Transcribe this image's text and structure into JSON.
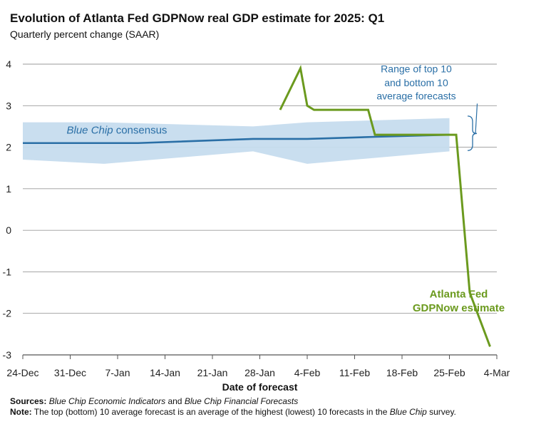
{
  "chart_data": {
    "type": "line",
    "title": "Evolution of Atlanta Fed GDPNow real GDP estimate for 2025: Q1",
    "subtitle": "Quarterly percent change (SAAR)",
    "xlabel": "Date of forecast",
    "ylabel": "",
    "ylim": [
      -3,
      4
    ],
    "yticks": [
      4,
      3,
      2,
      1,
      0,
      -1,
      -2,
      -3
    ],
    "xlim": [
      "2024-12-24",
      "2025-03-04"
    ],
    "xtick_labels": [
      "24-Dec",
      "31-Dec",
      "7-Jan",
      "14-Jan",
      "21-Jan",
      "28-Jan",
      "4-Feb",
      "11-Feb",
      "18-Feb",
      "25-Feb",
      "4-Mar"
    ],
    "grid": "horizontal",
    "colors": {
      "consensus": "#2a6fa6",
      "band": "#c6dcee",
      "gdpnow": "#6b9a1e",
      "annotation": "#2a6fa6"
    },
    "series": [
      {
        "name": "Blue Chip consensus",
        "x": [
          "2024-12-24",
          "2025-01-10",
          "2025-01-27",
          "2025-02-04",
          "2025-02-14",
          "2025-02-25"
        ],
        "y": [
          2.1,
          2.1,
          2.2,
          2.2,
          2.25,
          2.3
        ]
      },
      {
        "name": "Atlanta Fed GDPNow estimate",
        "x": [
          "2025-01-31",
          "2025-02-03",
          "2025-02-04",
          "2025-02-05",
          "2025-02-13",
          "2025-02-14",
          "2025-02-25",
          "2025-02-26",
          "2025-02-28",
          "2025-03-03"
        ],
        "y": [
          2.9,
          3.9,
          3.0,
          2.9,
          2.9,
          2.3,
          2.3,
          2.3,
          -1.5,
          -2.8
        ]
      }
    ],
    "band": {
      "name": "Range of top 10 and bottom 10 average forecasts",
      "x": [
        "2024-12-24",
        "2025-01-05",
        "2025-01-27",
        "2025-02-04",
        "2025-02-25"
      ],
      "upper": [
        2.6,
        2.6,
        2.5,
        2.6,
        2.7
      ],
      "lower": [
        1.7,
        1.6,
        1.9,
        1.6,
        1.9
      ]
    },
    "annotations": {
      "consensus_label_part1": "Blue Chip",
      "consensus_label_part2": " consensus",
      "range_line1": "Range of top 10",
      "range_line2": "and bottom 10",
      "range_line3": "average forecasts",
      "gdpnow_line1": "Atlanta Fed",
      "gdpnow_line2": "GDPNow estimate"
    }
  },
  "footer": {
    "sources_label": "Sources:",
    "sources_part1": "Blue Chip Economic Indicators",
    "sources_part2": " and ",
    "sources_part3": "Blue Chip Financial Forecasts",
    "note_label": "Note:",
    "note_part1": " The top (bottom) 10 average forecast is an average of the highest (lowest) 10 forecasts in the ",
    "note_part2": "Blue Chip",
    "note_part3": " survey."
  }
}
